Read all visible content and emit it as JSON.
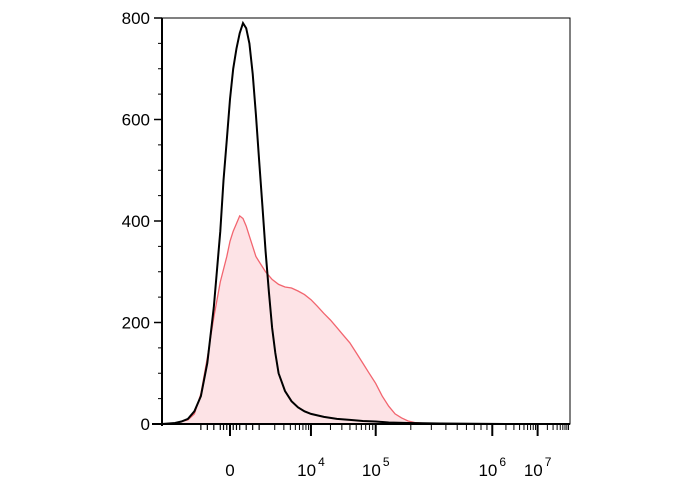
{
  "chart_data": {
    "type": "area",
    "title": "",
    "xlabel": "",
    "ylabel": "",
    "ylim": [
      0,
      800
    ],
    "y_ticks": [
      0,
      200,
      400,
      600,
      800
    ],
    "y_tick_labels": [
      "0",
      "200",
      "400",
      "600",
      "800"
    ],
    "x_scale": "biexponential",
    "x_ticks": [
      {
        "label": "0",
        "base": "0",
        "exp": ""
      },
      {
        "label": "10^4",
        "base": "10",
        "exp": "4"
      },
      {
        "label": "10^5",
        "base": "10",
        "exp": "5"
      },
      {
        "label": "10^6",
        "base": "10",
        "exp": "6"
      },
      {
        "label": "10^7",
        "base": "10",
        "exp": "7"
      }
    ],
    "grid": false,
    "series": [
      {
        "style": "filled",
        "color": "#f2656f",
        "fill": "#fde3e6",
        "points": [
          [
            -0.3,
            0
          ],
          [
            -0.1,
            2
          ],
          [
            0.0,
            5
          ],
          [
            0.1,
            8
          ],
          [
            0.2,
            20
          ],
          [
            0.3,
            60
          ],
          [
            0.4,
            130
          ],
          [
            0.5,
            210
          ],
          [
            0.6,
            280
          ],
          [
            0.7,
            330
          ],
          [
            0.75,
            360
          ],
          [
            0.8,
            380
          ],
          [
            0.85,
            395
          ],
          [
            0.9,
            410
          ],
          [
            0.95,
            405
          ],
          [
            1.0,
            390
          ],
          [
            1.05,
            370
          ],
          [
            1.1,
            350
          ],
          [
            1.15,
            330
          ],
          [
            1.2,
            320
          ],
          [
            1.3,
            300
          ],
          [
            1.4,
            285
          ],
          [
            1.5,
            275
          ],
          [
            1.6,
            270
          ],
          [
            1.7,
            268
          ],
          [
            1.8,
            262
          ],
          [
            1.9,
            255
          ],
          [
            2.0,
            245
          ],
          [
            2.1,
            232
          ],
          [
            2.2,
            218
          ],
          [
            2.3,
            205
          ],
          [
            2.4,
            190
          ],
          [
            2.5,
            175
          ],
          [
            2.6,
            160
          ],
          [
            2.7,
            140
          ],
          [
            2.8,
            120
          ],
          [
            2.9,
            100
          ],
          [
            3.0,
            80
          ],
          [
            3.1,
            55
          ],
          [
            3.2,
            35
          ],
          [
            3.3,
            20
          ],
          [
            3.4,
            12
          ],
          [
            3.5,
            6
          ],
          [
            3.6,
            3
          ],
          [
            3.8,
            1
          ],
          [
            4.0,
            0
          ],
          [
            5.0,
            0
          ],
          [
            6.0,
            0
          ]
        ]
      },
      {
        "style": "line",
        "color": "#000000",
        "points": [
          [
            -0.3,
            0
          ],
          [
            -0.1,
            2
          ],
          [
            0.0,
            5
          ],
          [
            0.1,
            10
          ],
          [
            0.2,
            25
          ],
          [
            0.3,
            55
          ],
          [
            0.4,
            120
          ],
          [
            0.5,
            230
          ],
          [
            0.6,
            380
          ],
          [
            0.65,
            480
          ],
          [
            0.7,
            560
          ],
          [
            0.75,
            640
          ],
          [
            0.8,
            700
          ],
          [
            0.85,
            740
          ],
          [
            0.9,
            770
          ],
          [
            0.95,
            790
          ],
          [
            1.0,
            780
          ],
          [
            1.05,
            750
          ],
          [
            1.1,
            690
          ],
          [
            1.15,
            610
          ],
          [
            1.2,
            520
          ],
          [
            1.25,
            430
          ],
          [
            1.3,
            340
          ],
          [
            1.35,
            260
          ],
          [
            1.4,
            190
          ],
          [
            1.45,
            140
          ],
          [
            1.5,
            100
          ],
          [
            1.6,
            65
          ],
          [
            1.7,
            45
          ],
          [
            1.8,
            33
          ],
          [
            1.9,
            25
          ],
          [
            2.0,
            20
          ],
          [
            2.1,
            17
          ],
          [
            2.2,
            14
          ],
          [
            2.3,
            12
          ],
          [
            2.4,
            10
          ],
          [
            2.6,
            8
          ],
          [
            2.8,
            6
          ],
          [
            3.0,
            5
          ],
          [
            3.2,
            3
          ],
          [
            3.5,
            2
          ],
          [
            4.0,
            1
          ],
          [
            5.0,
            0
          ],
          [
            6.0,
            0
          ]
        ]
      }
    ]
  }
}
